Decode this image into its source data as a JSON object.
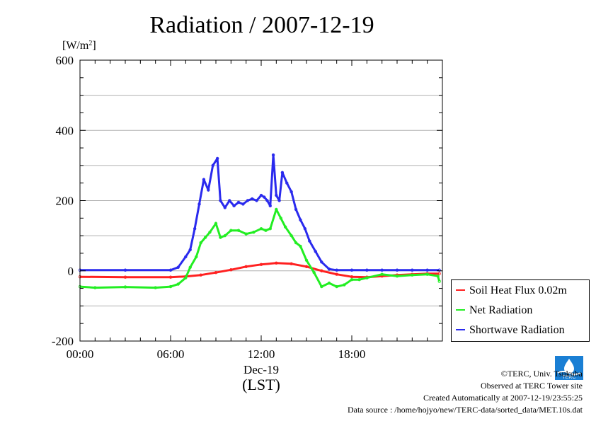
{
  "title": "Radiation / 2007-12-19",
  "units_label": "[W/m",
  "units_sup": "2",
  "units_close": "]",
  "date_label": "Dec-19",
  "lst_label": "(LST)",
  "legend": [
    {
      "label": "Soil Heat Flux 0.02m",
      "color": "#ff2020"
    },
    {
      "label": "Net Radiation",
      "color": "#22ee22"
    },
    {
      "label": "Shortwave Radiation",
      "color": "#2a2aee"
    }
  ],
  "footer": {
    "copyright": "©TERC, Univ. Tsukuba",
    "site": "Observed at TERC Tower site",
    "created": "Created Automatically at 2007-12-19/23:55:25",
    "source": "Data source : /home/hojyo/new/TERC-data/sorted_data/MET.10s.dat"
  },
  "logo_text": "TERC",
  "chart_data": {
    "type": "line",
    "title": "Radiation / 2007-12-19",
    "ylabel": "[W/m2]",
    "xlabel": "(LST)",
    "xlim": [
      0,
      24
    ],
    "ylim": [
      -200,
      600
    ],
    "xticks": [
      {
        "v": 0,
        "label": "00:00"
      },
      {
        "v": 6,
        "label": "06:00"
      },
      {
        "v": 12,
        "label": "12:00"
      },
      {
        "v": 18,
        "label": "18:00"
      }
    ],
    "yticks": [
      {
        "v": -200,
        "label": "-200"
      },
      {
        "v": 0,
        "label": "0"
      },
      {
        "v": 200,
        "label": "200"
      },
      {
        "v": 400,
        "label": "400"
      },
      {
        "v": 600,
        "label": "600"
      }
    ],
    "grid": true,
    "legend_position": "right",
    "series": [
      {
        "name": "Soil Heat Flux 0.02m",
        "color": "#ff2020",
        "x": [
          0,
          3,
          6,
          7,
          8,
          9,
          10,
          11,
          12,
          13,
          14,
          15,
          16,
          17,
          18,
          19,
          20,
          21,
          22,
          23,
          23.8
        ],
        "y": [
          -17,
          -18,
          -18,
          -16,
          -12,
          -5,
          3,
          12,
          18,
          22,
          20,
          12,
          0,
          -10,
          -17,
          -18,
          -15,
          -12,
          -10,
          -8,
          -8
        ]
      },
      {
        "name": "Net Radiation",
        "color": "#22ee22",
        "x": [
          0,
          1,
          3,
          5,
          6,
          6.5,
          7,
          7.3,
          7.7,
          8,
          8.3,
          8.6,
          9,
          9.3,
          9.6,
          10,
          10.5,
          11,
          11.5,
          12,
          12.3,
          12.6,
          13,
          13.3,
          13.6,
          14,
          14.3,
          14.6,
          15,
          15.5,
          16,
          16.5,
          17,
          17.5,
          18,
          18.5,
          19,
          20,
          21,
          22,
          23,
          23.7,
          23.8
        ],
        "y": [
          -45,
          -48,
          -46,
          -48,
          -45,
          -38,
          -20,
          10,
          40,
          80,
          95,
          110,
          135,
          95,
          100,
          115,
          115,
          105,
          110,
          120,
          115,
          120,
          175,
          150,
          125,
          100,
          80,
          70,
          30,
          -5,
          -45,
          -35,
          -45,
          -40,
          -25,
          -25,
          -20,
          -10,
          -15,
          -12,
          -10,
          -15,
          -30
        ]
      },
      {
        "name": "Shortwave Radiation",
        "color": "#2a2aee",
        "x": [
          0,
          3,
          6,
          6.5,
          7,
          7.3,
          7.6,
          7.9,
          8.2,
          8.5,
          8.8,
          9.1,
          9.3,
          9.6,
          9.9,
          10.2,
          10.5,
          10.8,
          11.1,
          11.4,
          11.7,
          12,
          12.2,
          12.4,
          12.6,
          12.8,
          13,
          13.2,
          13.4,
          13.7,
          14,
          14.3,
          14.6,
          14.9,
          15.2,
          15.6,
          16,
          16.5,
          17,
          18,
          19,
          20,
          21,
          22,
          23,
          23.8
        ],
        "y": [
          2,
          2,
          2,
          10,
          40,
          60,
          120,
          190,
          260,
          230,
          300,
          320,
          200,
          180,
          200,
          185,
          195,
          190,
          200,
          205,
          200,
          215,
          210,
          200,
          185,
          330,
          215,
          200,
          280,
          250,
          225,
          175,
          145,
          120,
          85,
          55,
          25,
          5,
          2,
          2,
          2,
          2,
          2,
          2,
          2,
          2
        ]
      }
    ]
  }
}
